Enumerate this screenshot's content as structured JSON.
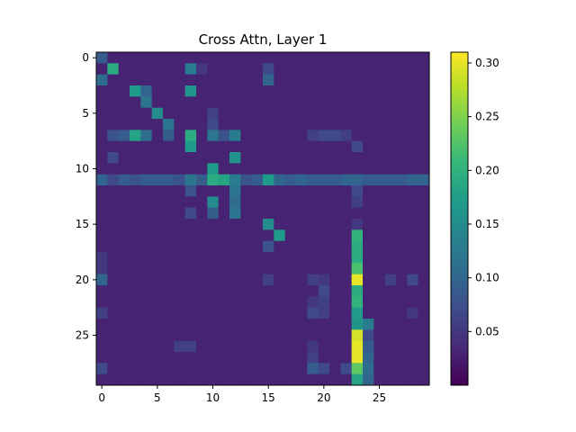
{
  "chart_data": {
    "type": "heatmap",
    "title": "Cross Attn, Layer 1",
    "xlabel": "",
    "ylabel": "",
    "rows": 30,
    "cols": 30,
    "x_ticks": [
      0,
      5,
      10,
      15,
      20,
      25
    ],
    "y_ticks": [
      0,
      5,
      10,
      15,
      20,
      25
    ],
    "colormap": "viridis",
    "color_range": [
      0.0,
      0.31
    ],
    "colorbar_ticks": [
      0.05,
      0.1,
      0.15,
      0.2,
      0.25,
      0.3
    ],
    "colorbar_tick_labels": [
      "0.05",
      "0.10",
      "0.15",
      "0.20",
      "0.25",
      "0.30"
    ],
    "grid": false,
    "background_level": 0.03,
    "cells": [
      {
        "r": 0,
        "c": 0,
        "v": 0.09
      },
      {
        "r": 1,
        "c": 1,
        "v": 0.19
      },
      {
        "r": 1,
        "c": 8,
        "v": 0.13
      },
      {
        "r": 1,
        "c": 9,
        "v": 0.05
      },
      {
        "r": 1,
        "c": 15,
        "v": 0.07
      },
      {
        "r": 2,
        "c": 0,
        "v": 0.11
      },
      {
        "r": 2,
        "c": 15,
        "v": 0.1
      },
      {
        "r": 3,
        "c": 3,
        "v": 0.17
      },
      {
        "r": 3,
        "c": 4,
        "v": 0.1
      },
      {
        "r": 3,
        "c": 8,
        "v": 0.16
      },
      {
        "r": 4,
        "c": 4,
        "v": 0.12
      },
      {
        "r": 5,
        "c": 5,
        "v": 0.15
      },
      {
        "r": 5,
        "c": 10,
        "v": 0.06
      },
      {
        "r": 6,
        "c": 6,
        "v": 0.12
      },
      {
        "r": 6,
        "c": 10,
        "v": 0.07
      },
      {
        "r": 7,
        "c": 1,
        "v": 0.08
      },
      {
        "r": 7,
        "c": 2,
        "v": 0.09
      },
      {
        "r": 7,
        "c": 3,
        "v": 0.18
      },
      {
        "r": 7,
        "c": 4,
        "v": 0.11
      },
      {
        "r": 7,
        "c": 6,
        "v": 0.09
      },
      {
        "r": 7,
        "c": 8,
        "v": 0.19
      },
      {
        "r": 7,
        "c": 10,
        "v": 0.12
      },
      {
        "r": 7,
        "c": 11,
        "v": 0.08
      },
      {
        "r": 7,
        "c": 12,
        "v": 0.13
      },
      {
        "r": 7,
        "c": 19,
        "v": 0.06
      },
      {
        "r": 7,
        "c": 20,
        "v": 0.07
      },
      {
        "r": 7,
        "c": 21,
        "v": 0.07
      },
      {
        "r": 7,
        "c": 22,
        "v": 0.06
      },
      {
        "r": 8,
        "c": 8,
        "v": 0.17
      },
      {
        "r": 8,
        "c": 23,
        "v": 0.07
      },
      {
        "r": 9,
        "c": 1,
        "v": 0.07
      },
      {
        "r": 9,
        "c": 12,
        "v": 0.16
      },
      {
        "r": 10,
        "c": 10,
        "v": 0.17
      },
      {
        "r": 11,
        "c": 0,
        "v": 0.1
      },
      {
        "r": 11,
        "c": 1,
        "v": 0.07
      },
      {
        "r": 11,
        "c": 2,
        "v": 0.09
      },
      {
        "r": 11,
        "c": 3,
        "v": 0.08
      },
      {
        "r": 11,
        "c": 4,
        "v": 0.09
      },
      {
        "r": 11,
        "c": 5,
        "v": 0.09
      },
      {
        "r": 11,
        "c": 6,
        "v": 0.09
      },
      {
        "r": 11,
        "c": 7,
        "v": 0.08
      },
      {
        "r": 11,
        "c": 8,
        "v": 0.12
      },
      {
        "r": 11,
        "c": 9,
        "v": 0.09
      },
      {
        "r": 11,
        "c": 10,
        "v": 0.19
      },
      {
        "r": 11,
        "c": 11,
        "v": 0.18
      },
      {
        "r": 11,
        "c": 12,
        "v": 0.13
      },
      {
        "r": 11,
        "c": 13,
        "v": 0.08
      },
      {
        "r": 11,
        "c": 14,
        "v": 0.09
      },
      {
        "r": 11,
        "c": 15,
        "v": 0.17
      },
      {
        "r": 11,
        "c": 16,
        "v": 0.1
      },
      {
        "r": 11,
        "c": 17,
        "v": 0.09
      },
      {
        "r": 11,
        "c": 18,
        "v": 0.1
      },
      {
        "r": 11,
        "c": 19,
        "v": 0.09
      },
      {
        "r": 11,
        "c": 20,
        "v": 0.09
      },
      {
        "r": 11,
        "c": 21,
        "v": 0.09
      },
      {
        "r": 11,
        "c": 22,
        "v": 0.1
      },
      {
        "r": 11,
        "c": 23,
        "v": 0.1
      },
      {
        "r": 11,
        "c": 24,
        "v": 0.09
      },
      {
        "r": 11,
        "c": 25,
        "v": 0.09
      },
      {
        "r": 11,
        "c": 26,
        "v": 0.09
      },
      {
        "r": 11,
        "c": 27,
        "v": 0.09
      },
      {
        "r": 11,
        "c": 28,
        "v": 0.1
      },
      {
        "r": 11,
        "c": 29,
        "v": 0.1
      },
      {
        "r": 12,
        "c": 8,
        "v": 0.08
      },
      {
        "r": 12,
        "c": 12,
        "v": 0.12
      },
      {
        "r": 12,
        "c": 23,
        "v": 0.07
      },
      {
        "r": 13,
        "c": 10,
        "v": 0.15
      },
      {
        "r": 13,
        "c": 12,
        "v": 0.11
      },
      {
        "r": 13,
        "c": 23,
        "v": 0.06
      },
      {
        "r": 14,
        "c": 8,
        "v": 0.07
      },
      {
        "r": 14,
        "c": 10,
        "v": 0.09
      },
      {
        "r": 14,
        "c": 12,
        "v": 0.12
      },
      {
        "r": 15,
        "c": 15,
        "v": 0.15
      },
      {
        "r": 15,
        "c": 23,
        "v": 0.05
      },
      {
        "r": 16,
        "c": 16,
        "v": 0.17
      },
      {
        "r": 16,
        "c": 23,
        "v": 0.2
      },
      {
        "r": 17,
        "c": 15,
        "v": 0.08
      },
      {
        "r": 17,
        "c": 23,
        "v": 0.19
      },
      {
        "r": 18,
        "c": 0,
        "v": 0.05
      },
      {
        "r": 18,
        "c": 23,
        "v": 0.19
      },
      {
        "r": 19,
        "c": 0,
        "v": 0.05
      },
      {
        "r": 19,
        "c": 23,
        "v": 0.22
      },
      {
        "r": 20,
        "c": 0,
        "v": 0.1
      },
      {
        "r": 20,
        "c": 15,
        "v": 0.06
      },
      {
        "r": 20,
        "c": 19,
        "v": 0.06
      },
      {
        "r": 20,
        "c": 20,
        "v": 0.05
      },
      {
        "r": 20,
        "c": 23,
        "v": 0.3
      },
      {
        "r": 20,
        "c": 26,
        "v": 0.06
      },
      {
        "r": 20,
        "c": 28,
        "v": 0.07
      },
      {
        "r": 21,
        "c": 20,
        "v": 0.07
      },
      {
        "r": 21,
        "c": 23,
        "v": 0.19
      },
      {
        "r": 22,
        "c": 19,
        "v": 0.05
      },
      {
        "r": 22,
        "c": 20,
        "v": 0.06
      },
      {
        "r": 22,
        "c": 23,
        "v": 0.2
      },
      {
        "r": 23,
        "c": 0,
        "v": 0.06
      },
      {
        "r": 23,
        "c": 19,
        "v": 0.07
      },
      {
        "r": 23,
        "c": 20,
        "v": 0.06
      },
      {
        "r": 23,
        "c": 23,
        "v": 0.17
      },
      {
        "r": 23,
        "c": 28,
        "v": 0.05
      },
      {
        "r": 24,
        "c": 23,
        "v": 0.16
      },
      {
        "r": 24,
        "c": 24,
        "v": 0.13
      },
      {
        "r": 25,
        "c": 23,
        "v": 0.29
      },
      {
        "r": 25,
        "c": 24,
        "v": 0.07
      },
      {
        "r": 26,
        "c": 7,
        "v": 0.06
      },
      {
        "r": 26,
        "c": 8,
        "v": 0.06
      },
      {
        "r": 26,
        "c": 19,
        "v": 0.05
      },
      {
        "r": 26,
        "c": 23,
        "v": 0.3
      },
      {
        "r": 26,
        "c": 24,
        "v": 0.09
      },
      {
        "r": 27,
        "c": 19,
        "v": 0.06
      },
      {
        "r": 27,
        "c": 23,
        "v": 0.3
      },
      {
        "r": 27,
        "c": 24,
        "v": 0.1
      },
      {
        "r": 28,
        "c": 0,
        "v": 0.07
      },
      {
        "r": 28,
        "c": 19,
        "v": 0.09
      },
      {
        "r": 28,
        "c": 20,
        "v": 0.07
      },
      {
        "r": 28,
        "c": 22,
        "v": 0.07
      },
      {
        "r": 28,
        "c": 23,
        "v": 0.23
      },
      {
        "r": 28,
        "c": 24,
        "v": 0.11
      },
      {
        "r": 29,
        "c": 23,
        "v": 0.18
      },
      {
        "r": 29,
        "c": 24,
        "v": 0.1
      }
    ]
  }
}
